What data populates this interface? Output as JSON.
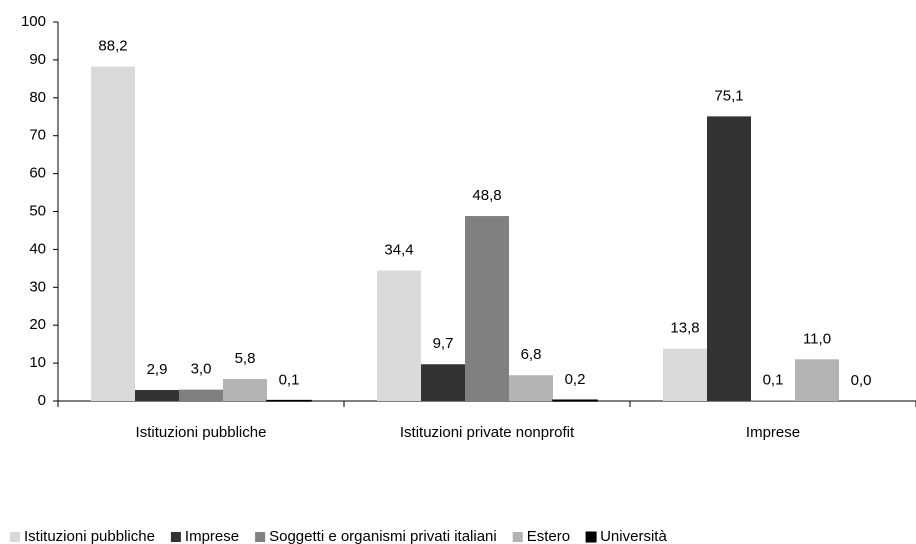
{
  "chart_data": {
    "type": "bar",
    "categories": [
      "Istituzioni pubbliche",
      "Istituzioni private nonprofit",
      "Imprese"
    ],
    "series": [
      {
        "name": "Istituzioni pubbliche",
        "color": "#d9d9d9",
        "values": [
          88.2,
          34.4,
          13.8
        ],
        "value_labels": [
          "88,2",
          "34,4",
          "13,8"
        ]
      },
      {
        "name": "Imprese",
        "color": "#333333",
        "values": [
          2.9,
          9.7,
          75.1
        ],
        "value_labels": [
          "2,9",
          "9,7",
          "75,1"
        ]
      },
      {
        "name": "Soggetti e organismi privati italiani",
        "color": "#808080",
        "values": [
          3.0,
          48.8,
          0.1
        ],
        "value_labels": [
          "3,0",
          "48,8",
          "0,1"
        ]
      },
      {
        "name": "Estero",
        "color": "#b3b3b3",
        "values": [
          5.8,
          6.8,
          11.0
        ],
        "value_labels": [
          "5,8",
          "6,8",
          "11,0"
        ]
      },
      {
        "name": "Università",
        "color": "#000000",
        "values": [
          0.1,
          0.2,
          0.0
        ],
        "value_labels": [
          "0,1",
          "0,2",
          "0,0"
        ]
      }
    ],
    "ylim": [
      0,
      100
    ],
    "yticks": [
      0,
      10,
      20,
      30,
      40,
      50,
      60,
      70,
      80,
      90,
      100
    ],
    "grid": false,
    "legend": "bottom"
  }
}
